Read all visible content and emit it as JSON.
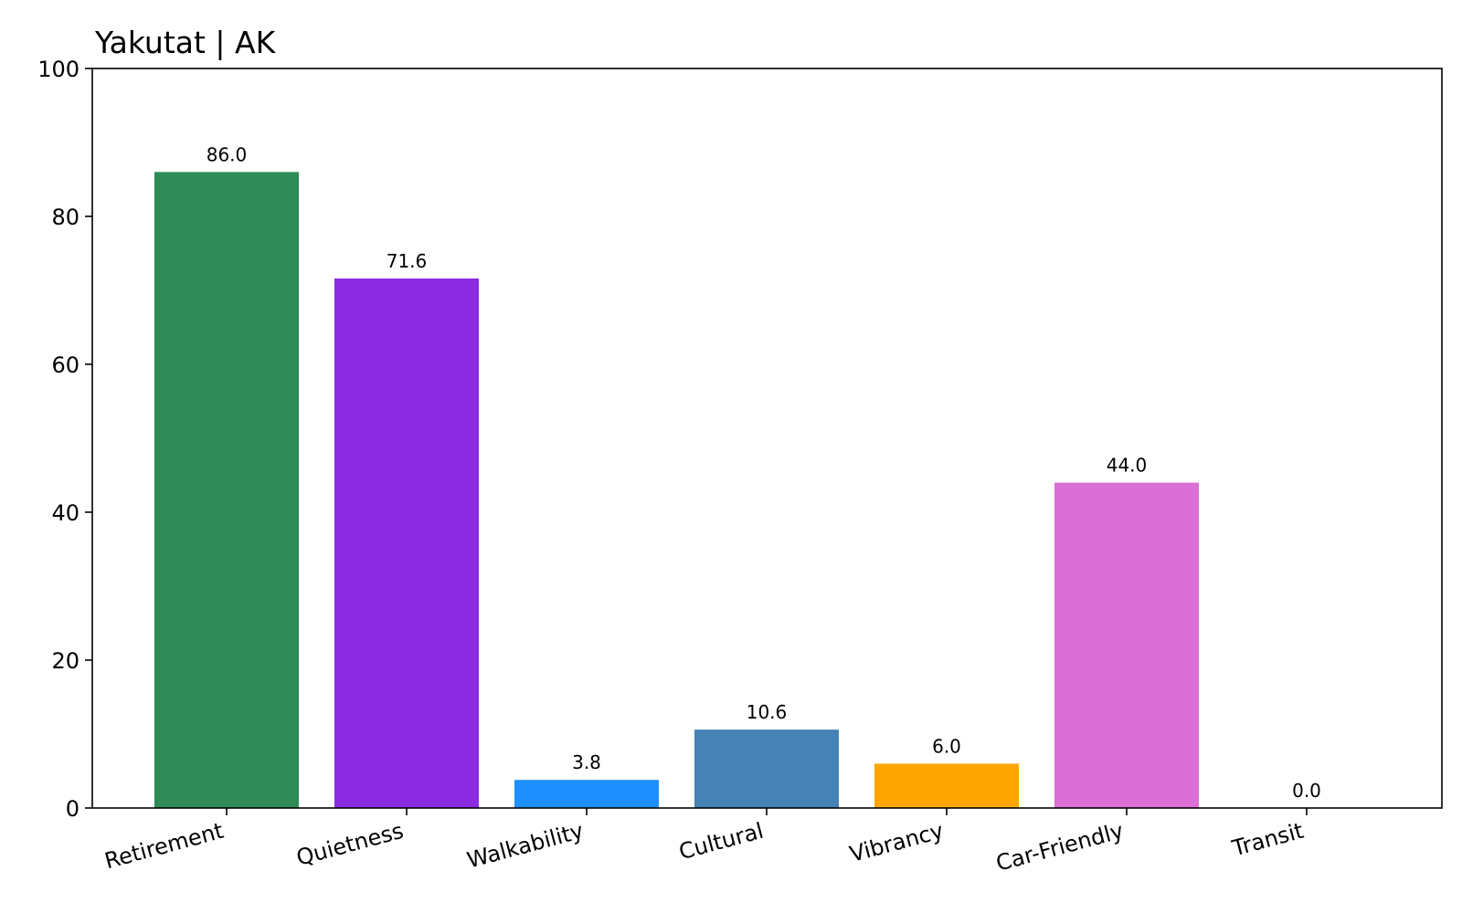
{
  "chart_data": {
    "type": "bar",
    "title": "Yakutat | AK",
    "xlabel": "",
    "ylabel": "",
    "categories": [
      "Retirement",
      "Quietness",
      "Walkability",
      "Cultural",
      "Vibrancy",
      "Car-Friendly",
      "Transit"
    ],
    "values": [
      86.0,
      71.6,
      3.8,
      10.6,
      6.0,
      44.0,
      0.0
    ],
    "value_labels": [
      "86.0",
      "71.6",
      "3.8",
      "10.6",
      "6.0",
      "44.0",
      "0.0"
    ],
    "colors": [
      "#2e8b57",
      "#8a2be2",
      "#1e90ff",
      "#4682b4",
      "#ffa500",
      "#da70d6",
      "#808080"
    ],
    "ylim": [
      0,
      100
    ],
    "yticks": [
      0,
      20,
      40,
      60,
      80,
      100
    ],
    "ytick_labels": [
      "0",
      "20",
      "40",
      "60",
      "80",
      "100"
    ],
    "grid": false,
    "legend": "none"
  }
}
